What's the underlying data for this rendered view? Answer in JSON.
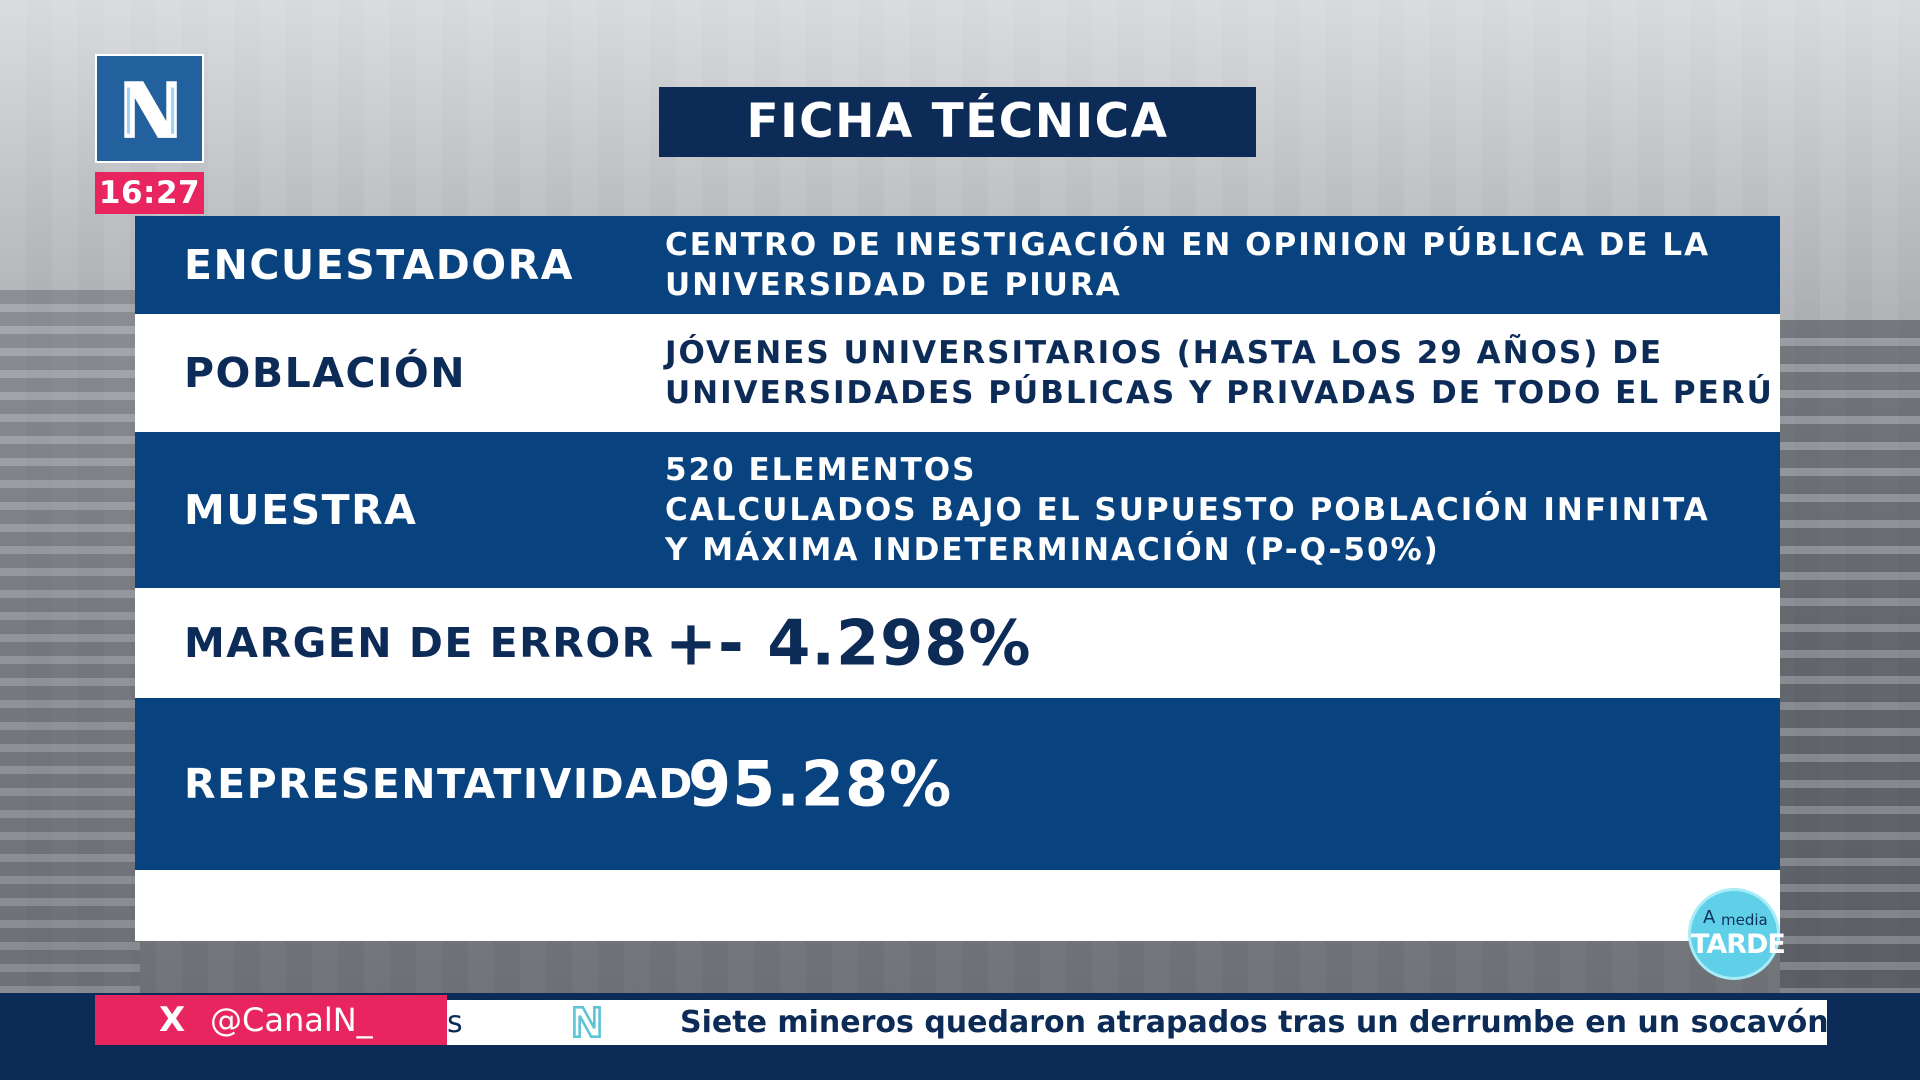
{
  "channel": {
    "logo_icon": "canal-n-logo-icon",
    "clock": "16:27",
    "show_logo_top_a": "A",
    "show_logo_top_media": "media",
    "show_logo_bottom": "TARDE"
  },
  "title": "FICHA TÉCNICA",
  "rows": [
    {
      "label": "ENCUESTADORA",
      "value_lines": [
        "CENTRO DE INESTIGACIÓN EN OPINION PÚBLICA DE LA",
        "UNIVERSIDAD DE PIURA"
      ]
    },
    {
      "label": "POBLACIÓN",
      "value_lines": [
        "JÓVENES UNIVERSITARIOS (HASTA LOS 29 AÑOS) DE",
        "UNIVERSIDADES PÚBLICAS Y PRIVADAS DE TODO EL PERÚ"
      ]
    },
    {
      "label": "MUESTRA",
      "value_lines": [
        "520 ELEMENTOS",
        "CALCULADOS BAJO EL SUPUESTO POBLACIÓN INFINITA",
        "Y MÁXIMA INDETERMINACIÓN (P-Q-50%)"
      ]
    },
    {
      "label": "MARGEN DE ERROR",
      "big_value": "+- 4.298%"
    },
    {
      "label": "REPRESENTATIVIDAD",
      "big_value": "95.28%"
    }
  ],
  "ticker": {
    "social_icon": "x-icon",
    "social_x": "X",
    "social_handle": "@CanalN_",
    "previous_fragment": "s",
    "separator_icon": "canal-n-small-logo-icon",
    "headline": "Siete mineros quedaron atrapados tras un derrumbe en un socavón ileg"
  },
  "colors": {
    "navy": "#0c2b57",
    "row_blue": "#08427f",
    "accent_pink": "#e8255e",
    "logo_blue": "#23609e"
  }
}
